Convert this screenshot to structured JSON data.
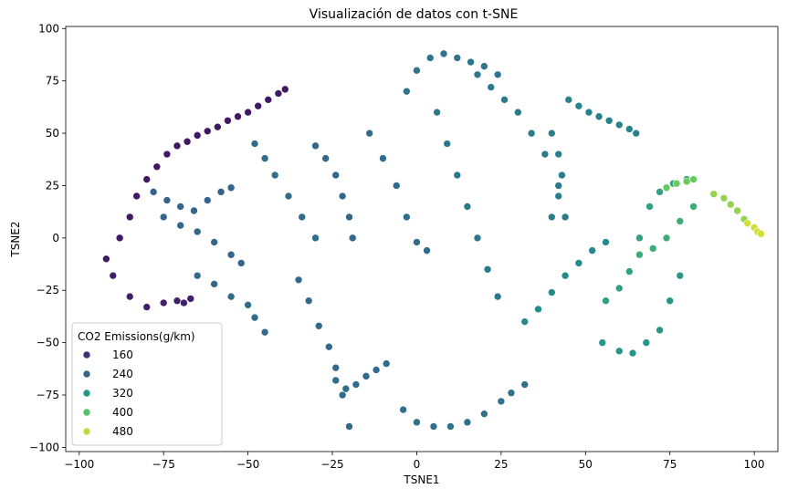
{
  "chart_data": {
    "type": "scatter",
    "title": "Visualización de datos con t-SNE",
    "xlabel": "TSNE1",
    "ylabel": "TSNE2",
    "xlim": [
      -104,
      107
    ],
    "ylim": [
      -102,
      101
    ],
    "xticks": [
      -100,
      -75,
      -50,
      -25,
      0,
      25,
      50,
      75,
      100
    ],
    "yticks": [
      -100,
      -75,
      -50,
      -25,
      0,
      25,
      50,
      75,
      100
    ],
    "grid": false,
    "legend": {
      "title": "CO2 Emissions(g/km)",
      "placement": "lower-left",
      "entries": [
        {
          "label": "160",
          "value": 160
        },
        {
          "label": "240",
          "value": 240
        },
        {
          "label": "320",
          "value": 320
        },
        {
          "label": "400",
          "value": 400
        },
        {
          "label": "480",
          "value": 480
        }
      ]
    },
    "colormap": "viridis",
    "value_range": [
      100,
      520
    ],
    "colormap_stops": [
      "#440154",
      "#3b528b",
      "#21918c",
      "#5ec962",
      "#fde725"
    ],
    "series": [
      {
        "value": 130,
        "x": [
          -92,
          -88,
          -85,
          -83,
          -80,
          -77,
          -74,
          -71,
          -68,
          -65,
          -62,
          -59,
          -56,
          -53,
          -50,
          -47,
          -44,
          -41,
          -39
        ],
        "y": [
          -10,
          0,
          10,
          20,
          28,
          34,
          40,
          44,
          46,
          49,
          51,
          53,
          56,
          58,
          60,
          63,
          66,
          69,
          71
        ]
      },
      {
        "value": 140,
        "x": [
          -90,
          -85,
          -80,
          -75,
          -71,
          -69,
          -67
        ],
        "y": [
          -18,
          -28,
          -33,
          -31,
          -30,
          -31,
          -29
        ]
      },
      {
        "value": 235,
        "x": [
          -78,
          -74,
          -70,
          -66,
          -62,
          -58,
          -55
        ],
        "y": [
          22,
          18,
          15,
          13,
          18,
          22,
          24
        ]
      },
      {
        "value": 240,
        "x": [
          -75,
          -70,
          -65,
          -60,
          -55,
          -52
        ],
        "y": [
          10,
          6,
          3,
          -2,
          -8,
          -12
        ]
      },
      {
        "value": 245,
        "x": [
          -65,
          -60,
          -55,
          -50,
          -48,
          -45
        ],
        "y": [
          -18,
          -22,
          -28,
          -32,
          -38,
          -45
        ]
      },
      {
        "value": 250,
        "x": [
          -48,
          -45,
          -42,
          -38,
          -34,
          -30
        ],
        "y": [
          45,
          38,
          30,
          20,
          10,
          0
        ]
      },
      {
        "value": 240,
        "x": [
          -30,
          -27,
          -24,
          -22,
          -20,
          -19
        ],
        "y": [
          44,
          38,
          30,
          20,
          10,
          0
        ]
      },
      {
        "value": 245,
        "x": [
          -35,
          -32,
          -29,
          -26,
          -24,
          -22,
          -20
        ],
        "y": [
          -20,
          -30,
          -42,
          -52,
          -62,
          -75,
          -90
        ]
      },
      {
        "value": 248,
        "x": [
          -24,
          -21,
          -18,
          -15,
          -12,
          -9
        ],
        "y": [
          -68,
          -72,
          -70,
          -66,
          -63,
          -60
        ]
      },
      {
        "value": 250,
        "x": [
          -14,
          -10,
          -6,
          -3,
          0,
          3
        ],
        "y": [
          50,
          38,
          25,
          10,
          -2,
          -6
        ]
      },
      {
        "value": 255,
        "x": [
          -4,
          0,
          5,
          10,
          15,
          20,
          25,
          28,
          32
        ],
        "y": [
          -82,
          -88,
          -90,
          -90,
          -88,
          -84,
          -78,
          -74,
          -70
        ]
      },
      {
        "value": 262,
        "x": [
          -3,
          0,
          4,
          8,
          12,
          16,
          20,
          24
        ],
        "y": [
          70,
          80,
          86,
          88,
          86,
          84,
          82,
          78
        ]
      },
      {
        "value": 268,
        "x": [
          6,
          9,
          12,
          15,
          18,
          21,
          24
        ],
        "y": [
          60,
          45,
          30,
          15,
          0,
          -15,
          -28
        ]
      },
      {
        "value": 272,
        "x": [
          18,
          22,
          26,
          30,
          34,
          38,
          42,
          44
        ],
        "y": [
          78,
          72,
          66,
          60,
          50,
          40,
          25,
          10
        ]
      },
      {
        "value": 278,
        "x": [
          40,
          42,
          43,
          42,
          40
        ],
        "y": [
          10,
          20,
          30,
          40,
          50
        ]
      },
      {
        "value": 285,
        "x": [
          45,
          48,
          51,
          54,
          57,
          60,
          63,
          65
        ],
        "y": [
          66,
          63,
          60,
          58,
          56,
          54,
          52,
          50
        ]
      },
      {
        "value": 300,
        "x": [
          32,
          36,
          40,
          44,
          48,
          52,
          56
        ],
        "y": [
          -40,
          -34,
          -26,
          -18,
          -12,
          -6,
          -2
        ]
      },
      {
        "value": 320,
        "x": [
          55,
          60,
          64,
          68,
          72,
          75,
          78
        ],
        "y": [
          -50,
          -54,
          -55,
          -50,
          -44,
          -30,
          -18
        ]
      },
      {
        "value": 340,
        "x": [
          56,
          60,
          63,
          66,
          69,
          72,
          76,
          80
        ],
        "y": [
          -30,
          -24,
          -16,
          0,
          15,
          22,
          26,
          28
        ]
      },
      {
        "value": 360,
        "x": [
          66,
          70,
          74,
          78,
          82
        ],
        "y": [
          -8,
          -5,
          0,
          8,
          15
        ]
      },
      {
        "value": 420,
        "x": [
          74,
          77,
          80,
          82
        ],
        "y": [
          24,
          26,
          27,
          28
        ]
      },
      {
        "value": 450,
        "x": [
          88,
          91,
          93,
          95,
          97
        ],
        "y": [
          21,
          19,
          16,
          13,
          9
        ]
      },
      {
        "value": 490,
        "x": [
          98,
          100,
          101,
          102
        ],
        "y": [
          7,
          5,
          3,
          2
        ]
      }
    ]
  }
}
